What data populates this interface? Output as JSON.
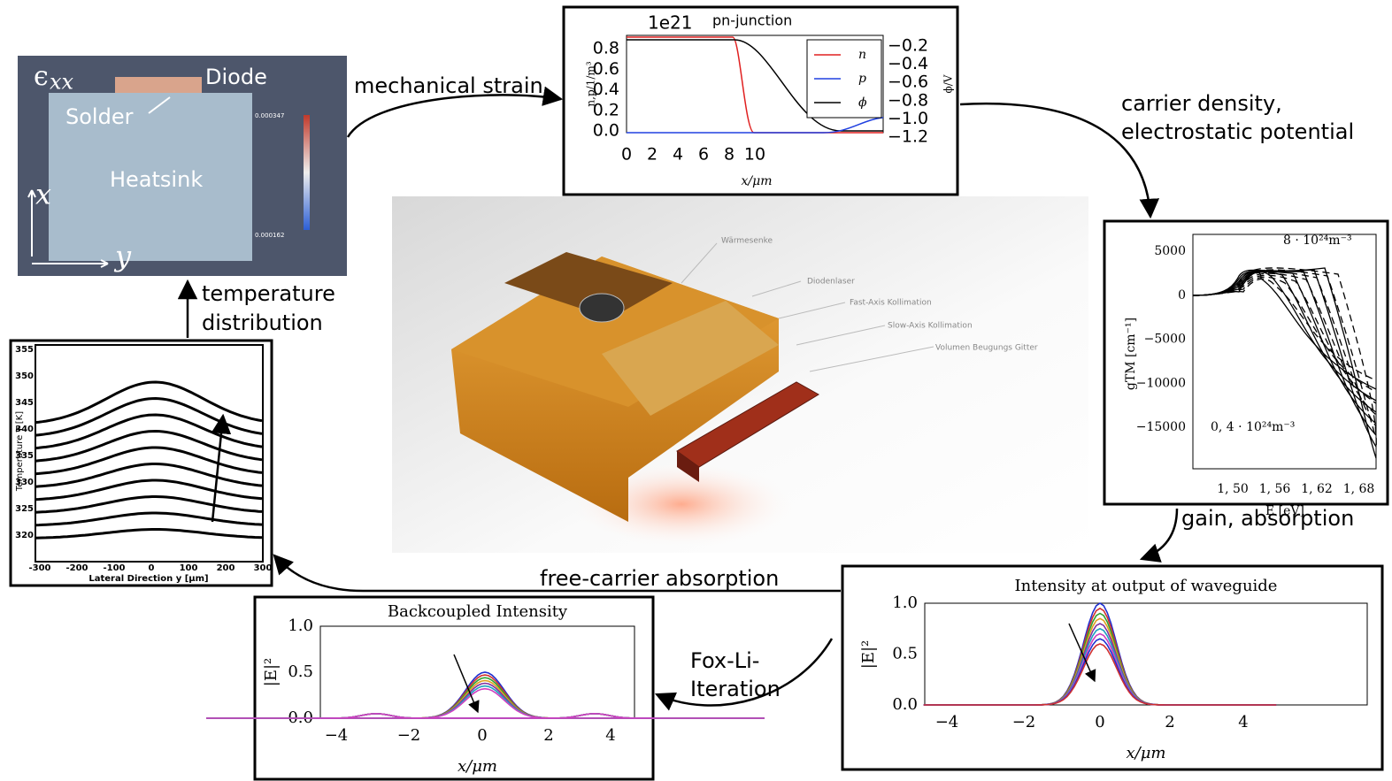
{
  "edges": {
    "strain_to_pn": "mechanical strain",
    "pn_to_gain": [
      "carrier density,",
      "electrostatic potential"
    ],
    "gain_to_output": "gain, absorption",
    "output_to_temperature": "free-carrier absorption",
    "output_to_backcoupled": [
      "Fox-Li-",
      "Iteration"
    ],
    "temperature_to_strain": [
      "temperature",
      "distribution"
    ]
  },
  "strain_panel": {
    "symbol": "ϵ",
    "symbol_sub": "xx",
    "diode": "Diode",
    "solder": "Solder",
    "heatsink": "Heatsink",
    "axis_x": "x",
    "axis_y": "y",
    "colorbar": [
      "0.000347",
      "0.000162"
    ]
  },
  "pn_plot": {
    "exponent": "1e21",
    "title": "pn-junction",
    "ylabel": "n,p/1/m³",
    "y2label": "ϕ/V",
    "xlabel": "x/μm",
    "yticks": [
      "0.0",
      "0.2",
      "0.4",
      "0.6",
      "0.8"
    ],
    "y2ticks": [
      "−0.2",
      "−0.4",
      "−0.6",
      "−0.8",
      "−1.0",
      "−1.2"
    ],
    "xticks": [
      "0",
      "2",
      "4",
      "6",
      "8",
      "10"
    ],
    "legend": [
      "n",
      "p",
      "ϕ"
    ]
  },
  "center_image": {
    "labels": [
      "Wärmesenke",
      "Diodenlaser",
      "Fast-Axis Kollimation",
      "Slow-Axis Kollimation",
      "Volumen Beugungs Gitter"
    ]
  },
  "gain_plot": {
    "ylabel": "gTM [cm⁻¹]",
    "xlabel": "E [eV]",
    "yticks": [
      "5000",
      "0",
      "−5000",
      "−10000",
      "−15000"
    ],
    "xticks": [
      "1, 50",
      "1, 56",
      "1, 62",
      "1, 68"
    ],
    "annotation_top": "8 · 10²⁴m⁻³",
    "annotation_bottom": "0, 4 · 10²⁴m⁻³"
  },
  "output_plot": {
    "title": "Intensity at output of waveguide",
    "ylabel": "|E|²",
    "xlabel": "x/μm",
    "yticks": [
      "1.0",
      "0.5",
      "0.0"
    ],
    "xticks": [
      "−4",
      "−2",
      "0",
      "2",
      "4"
    ]
  },
  "backcoupled_plot": {
    "title": "Backcoupled Intensity",
    "ylabel": "|E|²",
    "xlabel": "x/μm",
    "yticks": [
      "1.0",
      "0.5",
      "0.0"
    ],
    "xticks": [
      "−4",
      "−2",
      "0",
      "2",
      "4"
    ]
  },
  "temperature_plot": {
    "ylabel": "Temperature T [K]",
    "xlabel": "Lateral Direction y [µm]",
    "yticks": [
      "355",
      "350",
      "345",
      "340",
      "335",
      "330",
      "325",
      "320"
    ],
    "xticks": [
      "-300",
      "-200",
      "-100",
      "0",
      "100",
      "200",
      "300"
    ]
  }
}
